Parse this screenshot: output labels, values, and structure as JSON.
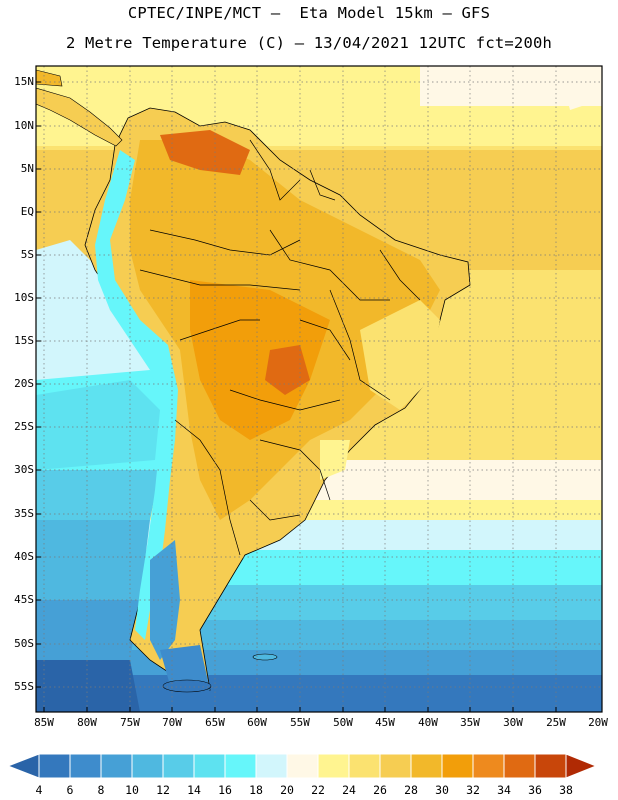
{
  "header": {
    "line1": "CPTEC/INPE/MCT –  Eta Model 15km – GFS",
    "line2": "2 Metre Temperature (C) – 13/04/2021 12UTC fct=200h"
  },
  "map": {
    "variable": "2 Metre Temperature",
    "units": "C",
    "lat_labels": [
      "15N",
      "10N",
      "5N",
      "EQ",
      "5S",
      "10S",
      "15S",
      "20S",
      "25S",
      "30S",
      "35S",
      "40S",
      "45S",
      "50S",
      "55S"
    ],
    "lon_labels": [
      "85W",
      "80W",
      "75W",
      "70W",
      "65W",
      "60W",
      "55W",
      "50W",
      "45W",
      "40W",
      "35W",
      "30W",
      "25W",
      "20W"
    ]
  },
  "colorbar": {
    "labels": [
      "4",
      "6",
      "8",
      "10",
      "12",
      "14",
      "16",
      "18",
      "20",
      "22",
      "24",
      "26",
      "28",
      "30",
      "32",
      "34",
      "36",
      "38"
    ],
    "colors": [
      "#2a64a8",
      "#3478bd",
      "#3e8ccc",
      "#46a0d6",
      "#4fb8e0",
      "#58cce8",
      "#5ee2f0",
      "#66f6fa",
      "#d2f6fc",
      "#fff8e6",
      "#fff490",
      "#fbe270",
      "#f6cd52",
      "#f2b82a",
      "#f29e0a",
      "#ee8a1e",
      "#e06a12",
      "#c8460a",
      "#b02a04"
    ]
  }
}
